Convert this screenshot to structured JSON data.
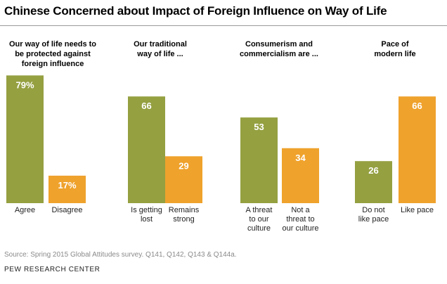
{
  "title": "Chinese Concerned about Impact of Foreign Influence on Way of Life",
  "colors": {
    "agree": "#95a041",
    "disagree": "#efa22c",
    "value_text": "#ffffff",
    "axis_text": "#222222"
  },
  "chart_data": [
    {
      "type": "bar",
      "title_lines": [
        "Our way of life needs to",
        "be protected against",
        "foreign influence"
      ],
      "categories": [
        [
          "Agree"
        ],
        [
          "Disagree"
        ]
      ],
      "values": [
        79,
        17
      ],
      "labels": [
        "79%",
        "17%"
      ],
      "ylim": [
        0,
        100
      ]
    },
    {
      "type": "bar",
      "title_lines": [
        "Our traditional",
        "way of life ..."
      ],
      "categories": [
        [
          "Is getting",
          "lost"
        ],
        [
          "Remains",
          "strong"
        ]
      ],
      "values": [
        66,
        29
      ],
      "labels": [
        "66",
        "29"
      ],
      "ylim": [
        0,
        100
      ]
    },
    {
      "type": "bar",
      "title_lines": [
        "Consumerism and",
        "commercialism are ..."
      ],
      "categories": [
        [
          "A threat",
          "to our",
          "culture"
        ],
        [
          "Not a",
          "threat to",
          "our culture"
        ]
      ],
      "values": [
        53,
        34
      ],
      "labels": [
        "53",
        "34"
      ],
      "ylim": [
        0,
        100
      ]
    },
    {
      "type": "bar",
      "title_lines": [
        "Pace of",
        "modern life"
      ],
      "categories": [
        [
          "Do not",
          "like pace"
        ],
        [
          "Like pace"
        ]
      ],
      "values": [
        26,
        66
      ],
      "labels": [
        "26",
        "66"
      ],
      "ylim": [
        0,
        100
      ]
    }
  ],
  "source": "Source: Spring 2015 Global Attitudes survey. Q141, Q142, Q143 & Q144a.",
  "brand": "PEW RESEARCH CENTER"
}
